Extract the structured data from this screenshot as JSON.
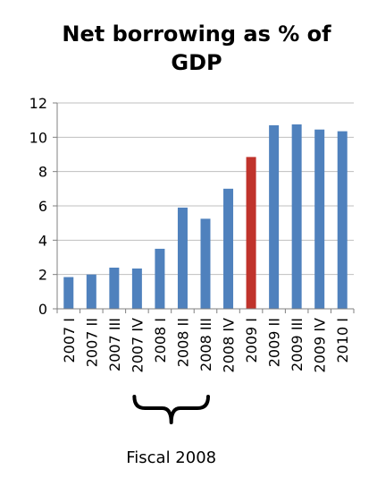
{
  "chart_data": {
    "type": "bar",
    "title_lines": [
      "Net borrowing as % of",
      "GDP"
    ],
    "xlabel": "",
    "ylabel": "",
    "ylim": [
      0,
      12
    ],
    "yticks": [
      0,
      2,
      4,
      6,
      8,
      10,
      12
    ],
    "grid": true,
    "legend": "none",
    "categories": [
      "2007 I",
      "2007 II",
      "2007 III",
      "2007 IV",
      "2008 I",
      "2008 II",
      "2008 III",
      "2008 IV",
      "2009 I",
      "2009 II",
      "2009 III",
      "2009 IV",
      "2010 I"
    ],
    "values": [
      1.85,
      2.0,
      2.4,
      2.35,
      3.5,
      5.9,
      5.25,
      7.0,
      8.85,
      10.7,
      10.75,
      10.45,
      10.35
    ],
    "colors": {
      "default": "#4F81BD",
      "highlight": "#C0332B",
      "grid": "#BFBFBF",
      "axis": "#808080"
    },
    "highlight_category": "2009 I",
    "annotation": {
      "label": "Fiscal 2008",
      "from_category": "2007 IV",
      "to_category": "2008 III"
    }
  }
}
